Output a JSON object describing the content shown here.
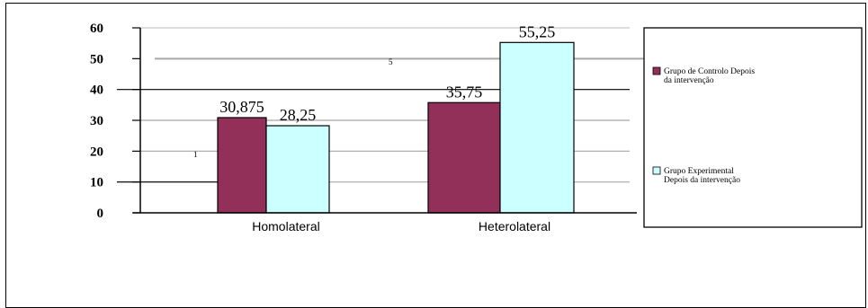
{
  "chart_data": {
    "type": "bar",
    "categories": [
      "Homolateral",
      "Heterolateral"
    ],
    "series": [
      {
        "name": "Grupo de Controlo Depois da intervenção",
        "legend_lines": [
          "Grupo de Controlo Depois",
          "da intervenção"
        ],
        "color": "#93305a",
        "values": [
          30.875,
          35.75
        ],
        "labels": [
          "30,875",
          "35,75"
        ]
      },
      {
        "name": "Grupo Experimental Depois da intervenção",
        "legend_lines": [
          "Grupo Experimental",
          "Depois da intervenção"
        ],
        "color": "#ccffff",
        "values": [
          28.25,
          55.25
        ],
        "labels": [
          "28,25",
          "55,25"
        ]
      }
    ],
    "yticks": [
      "0",
      "10",
      "20",
      "30",
      "40",
      "50",
      "60"
    ],
    "ylim": [
      0,
      60
    ],
    "grid": true,
    "legend_position": "right",
    "stray_marks": [
      "1",
      "5"
    ]
  }
}
